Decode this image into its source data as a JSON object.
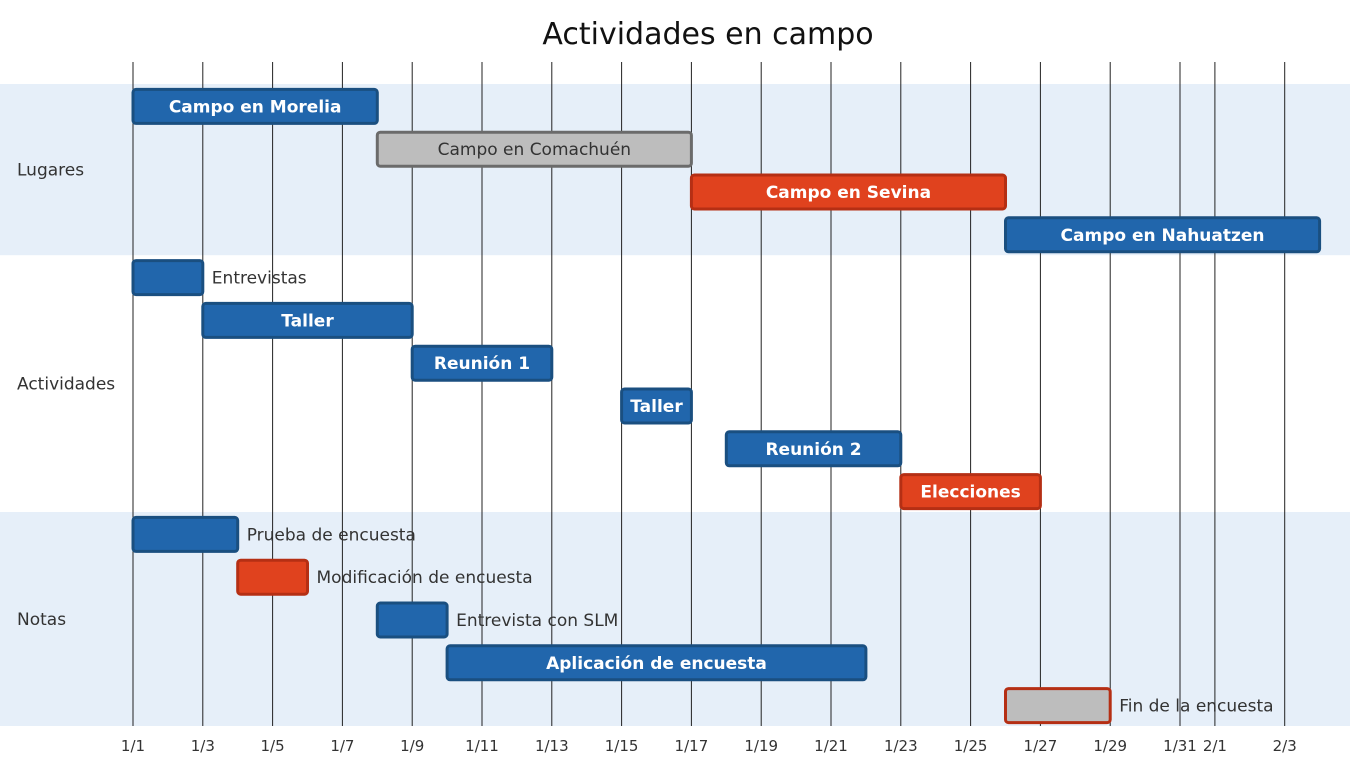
{
  "chart_data": {
    "type": "gantt",
    "title": "Actividades en campo",
    "x_axis": {
      "start": "2024-01-01",
      "end": "2024-02-04",
      "ticks": [
        "1/1",
        "1/3",
        "1/5",
        "1/7",
        "1/9",
        "1/11",
        "1/13",
        "1/15",
        "1/17",
        "1/19",
        "1/21",
        "1/23",
        "1/25",
        "1/27",
        "1/29",
        "1/31",
        "2/1",
        "2/3"
      ],
      "tick_dates": [
        "2024-01-01",
        "2024-01-03",
        "2024-01-05",
        "2024-01-07",
        "2024-01-09",
        "2024-01-11",
        "2024-01-13",
        "2024-01-15",
        "2024-01-17",
        "2024-01-19",
        "2024-01-21",
        "2024-01-23",
        "2024-01-25",
        "2024-01-27",
        "2024-01-29",
        "2024-01-31",
        "2024-02-01",
        "2024-02-03"
      ],
      "vertical_grid": true
    },
    "colors": {
      "normal": "#2166ac",
      "normal_border": "#1a4f80",
      "critical": "#e0421e",
      "critical_border": "#b52f14",
      "done": "#bdbdbd",
      "done_border": "#6b6b6b",
      "section_band": "#e6eff9",
      "grid": "#222222"
    },
    "sections": [
      {
        "name": "Lugares",
        "tasks": [
          {
            "label": "Campo en Morelia",
            "start": "2024-01-01",
            "end": "2024-01-08",
            "status": "normal",
            "label_position": "inside"
          },
          {
            "label": "Campo en Comachuén",
            "start": "2024-01-08",
            "end": "2024-01-17",
            "status": "done",
            "label_position": "inside"
          },
          {
            "label": "Campo en Sevina",
            "start": "2024-01-17",
            "end": "2024-01-26",
            "status": "critical",
            "label_position": "inside"
          },
          {
            "label": "Campo en Nahuatzen",
            "start": "2024-01-26",
            "end": "2024-02-04",
            "status": "normal",
            "label_position": "inside"
          }
        ]
      },
      {
        "name": "Actividades",
        "tasks": [
          {
            "label": "Entrevistas",
            "start": "2024-01-01",
            "end": "2024-01-03",
            "status": "normal",
            "label_position": "outside"
          },
          {
            "label": "Taller",
            "start": "2024-01-03",
            "end": "2024-01-09",
            "status": "normal",
            "label_position": "inside"
          },
          {
            "label": "Reunión 1",
            "start": "2024-01-09",
            "end": "2024-01-13",
            "status": "normal",
            "label_position": "inside"
          },
          {
            "label": "Taller",
            "start": "2024-01-15",
            "end": "2024-01-17",
            "status": "normal",
            "label_position": "inside"
          },
          {
            "label": "Reunión 2",
            "start": "2024-01-18",
            "end": "2024-01-23",
            "status": "normal",
            "label_position": "inside"
          },
          {
            "label": "Elecciones",
            "start": "2024-01-23",
            "end": "2024-01-27",
            "status": "critical",
            "label_position": "inside"
          }
        ]
      },
      {
        "name": "Notas",
        "tasks": [
          {
            "label": "Prueba de encuesta",
            "start": "2024-01-01",
            "end": "2024-01-04",
            "status": "normal",
            "label_position": "outside"
          },
          {
            "label": "Modificación de encuesta",
            "start": "2024-01-04",
            "end": "2024-01-06",
            "status": "critical",
            "label_position": "outside"
          },
          {
            "label": "Entrevista con SLM",
            "start": "2024-01-08",
            "end": "2024-01-10",
            "status": "normal",
            "label_position": "outside"
          },
          {
            "label": "Aplicación de encuesta",
            "start": "2024-01-10",
            "end": "2024-01-22",
            "status": "normal",
            "label_position": "inside"
          },
          {
            "label": "Fin de la encuesta",
            "start": "2024-01-26",
            "end": "2024-01-29",
            "status": "done_critical",
            "label_position": "outside"
          }
        ]
      }
    ]
  }
}
